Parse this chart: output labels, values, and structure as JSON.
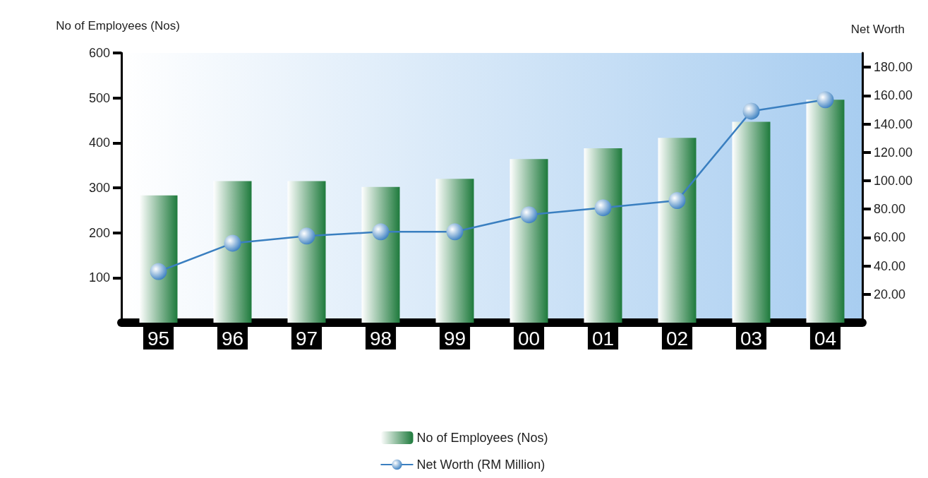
{
  "chart_data": {
    "type": "bar",
    "ylabel": "No of Employees (Nos)",
    "y2label": "Net Worth",
    "categories": [
      "95",
      "96",
      "97",
      "98",
      "99",
      "00",
      "01",
      "02",
      "03",
      "04"
    ],
    "series": [
      {
        "name": "No of Employees (Nos)",
        "color": "#1e7a3c",
        "values": [
          283,
          315,
          315,
          302,
          320,
          364,
          388,
          411,
          447,
          496
        ]
      },
      {
        "name": "Net Worth (RM Million)",
        "type": "line",
        "axis": "y2",
        "color": "#3a7fc0",
        "values": [
          36,
          56,
          61,
          64,
          64,
          76,
          81,
          86,
          149,
          157
        ]
      }
    ],
    "ylim": [
      0,
      600
    ],
    "yticks": [
      100,
      200,
      300,
      400,
      500,
      600
    ],
    "y2lim": [
      0,
      190
    ],
    "y2ticks": [
      {
        "value": 20,
        "label": "20.00"
      },
      {
        "value": 40,
        "label": "40.00"
      },
      {
        "value": 60,
        "label": "60.00"
      },
      {
        "value": 80,
        "label": "80.00"
      },
      {
        "value": 100,
        "label": "100.00"
      },
      {
        "value": 120,
        "label": "120.00"
      },
      {
        "value": 140,
        "label": "140.00"
      },
      {
        "value": 160,
        "label": "160.00"
      },
      {
        "value": 180,
        "label": "180.00"
      }
    ],
    "grid": false,
    "legend": "bottom",
    "marker": "circle",
    "line_style": "solid"
  }
}
